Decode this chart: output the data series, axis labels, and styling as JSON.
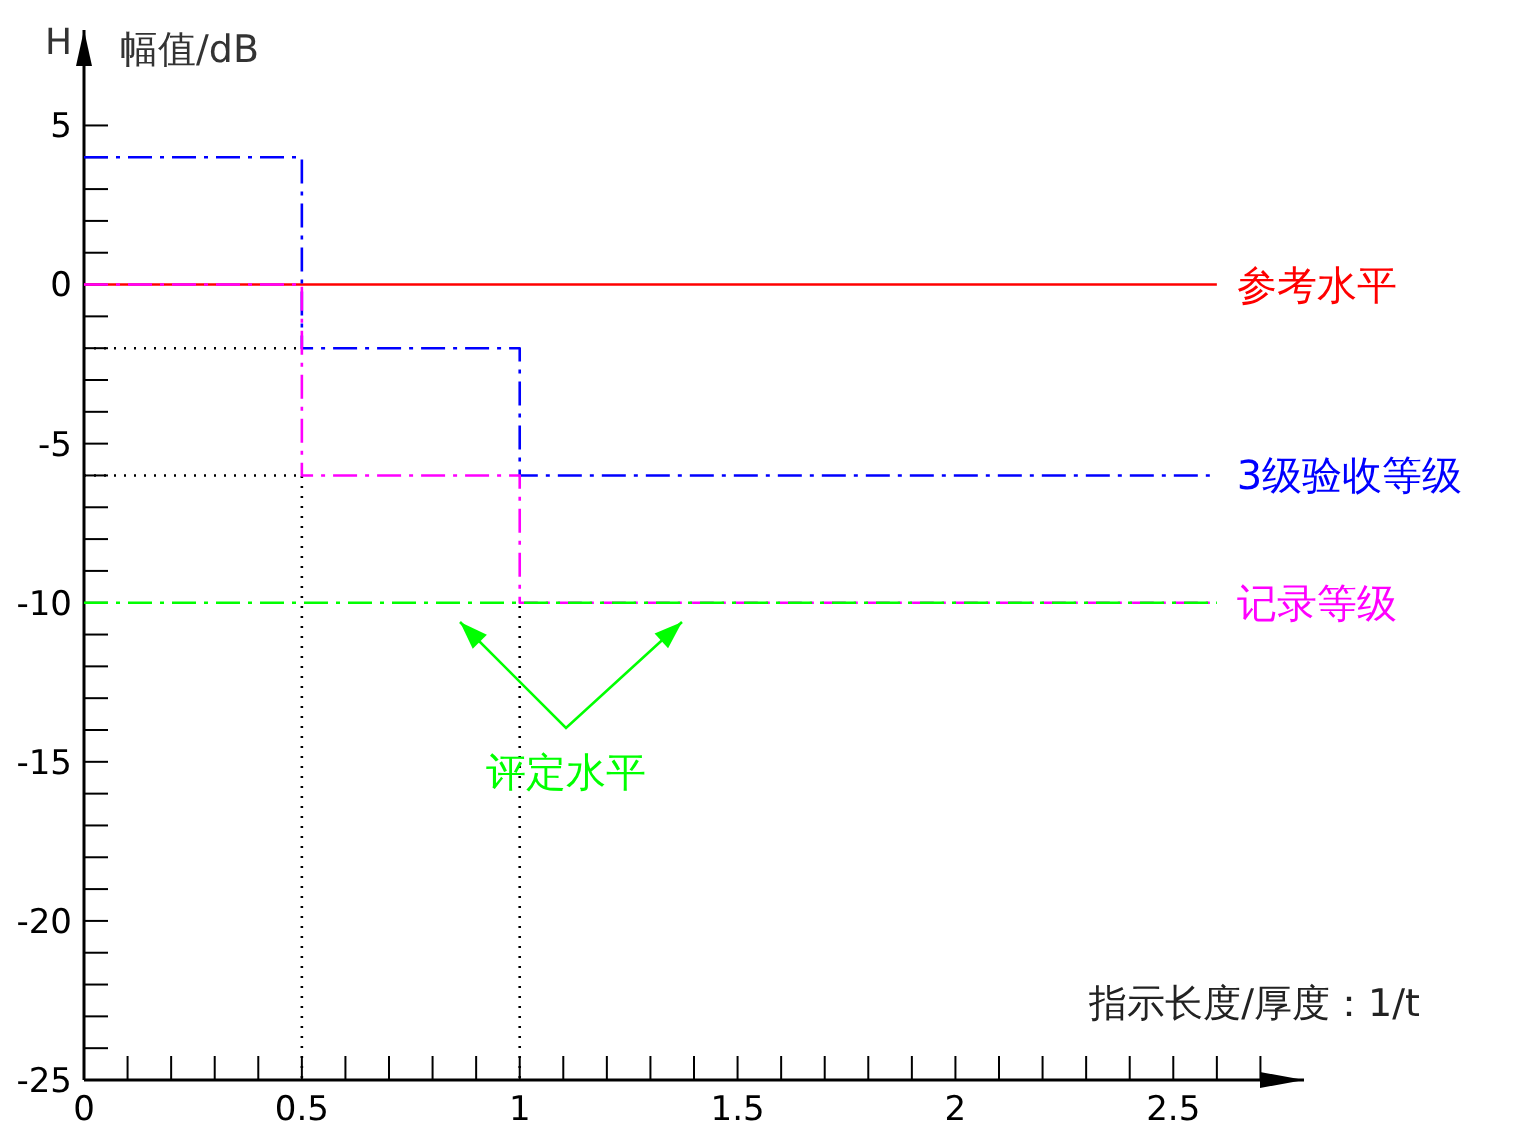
{
  "chart_data": {
    "type": "line",
    "xlabel": "指示长度/厚度：1/t",
    "ylabel": "幅值/dB",
    "xlim": [
      0,
      2.8
    ],
    "ylim": [
      -25,
      8
    ],
    "xticks": [
      0,
      {
        "value": 0.1,
        "label": null
      },
      {
        "value": 0.2,
        "label": null
      },
      {
        "value": 0.3,
        "label": null
      },
      {
        "value": 0.4,
        "label": null
      },
      0.5,
      {
        "value": 0.6,
        "label": null
      },
      {
        "value": 0.7,
        "label": null
      },
      {
        "value": 0.8,
        "label": null
      },
      {
        "value": 0.9,
        "label": null
      },
      1,
      {
        "value": 1.1,
        "label": null
      },
      {
        "value": 1.2,
        "label": null
      },
      {
        "value": 1.3,
        "label": null
      },
      {
        "value": 1.4,
        "label": null
      },
      1.5,
      {
        "value": 1.6,
        "label": null
      },
      {
        "value": 1.7,
        "label": null
      },
      {
        "value": 1.8,
        "label": null
      },
      {
        "value": 1.9,
        "label": null
      },
      2,
      {
        "value": 2.1,
        "label": null
      },
      {
        "value": 2.2,
        "label": null
      },
      {
        "value": 2.3,
        "label": null
      },
      {
        "value": 2.4,
        "label": null
      },
      2.5,
      {
        "value": 2.6,
        "label": null
      },
      {
        "value": 2.7,
        "label": null
      }
    ],
    "yticks": [
      -25,
      {
        "value": -24,
        "label": null
      },
      {
        "value": -23,
        "label": null
      },
      {
        "value": -22,
        "label": null
      },
      {
        "value": -21,
        "label": null
      },
      -20,
      {
        "value": -19,
        "label": null
      },
      {
        "value": -18,
        "label": null
      },
      {
        "value": -17,
        "label": null
      },
      {
        "value": -16,
        "label": null
      },
      -15,
      {
        "value": -14,
        "label": null
      },
      {
        "value": -13,
        "label": null
      },
      {
        "value": -12,
        "label": null
      },
      {
        "value": -11,
        "label": null
      },
      -10,
      {
        "value": -9,
        "label": null
      },
      {
        "value": -8,
        "label": null
      },
      {
        "value": -7,
        "label": null
      },
      {
        "value": -6,
        "label": null
      },
      -5,
      {
        "value": -4,
        "label": null
      },
      {
        "value": -3,
        "label": null
      },
      {
        "value": -2,
        "label": null
      },
      {
        "value": -1,
        "label": null
      },
      0,
      {
        "value": 1,
        "label": null
      },
      {
        "value": 2,
        "label": null
      },
      {
        "value": 3,
        "label": null
      },
      {
        "value": 4,
        "label": null
      },
      5
    ],
    "grid": false,
    "marker": "none",
    "series": [
      {
        "name": "参考水平",
        "color": "#ff0000",
        "line_style": "solid",
        "x": [
          0,
          2.6
        ],
        "values": [
          0,
          0
        ]
      },
      {
        "name": "3级验收等级",
        "color": "#0000ff",
        "line_style": "dashed",
        "x": [
          0,
          0.5,
          0.5,
          1,
          1,
          2.6
        ],
        "values": [
          4,
          4,
          -2,
          -2,
          -6,
          -6
        ]
      },
      {
        "name": "记录等级",
        "color": "#ff00ff",
        "line_style": "dashed",
        "x": [
          0,
          0.5,
          0.5,
          1,
          1,
          2.6
        ],
        "values": [
          0,
          0,
          -6,
          -6,
          -10,
          -10
        ]
      },
      {
        "color": "#00ff00",
        "line_style": "dashed",
        "x": [
          0,
          2.6
        ],
        "values": [
          -10,
          -10
        ]
      },
      {
        "color": "#000000",
        "line_style": "dotted",
        "x": [
          0,
          0.5
        ],
        "values": [
          -2,
          -2
        ]
      },
      {
        "color": "#000000",
        "line_style": "dotted",
        "x": [
          0,
          0.5
        ],
        "values": [
          -6,
          -6
        ]
      }
    ],
    "ref_lines": [
      {
        "axis": "x",
        "value": 0.5,
        "color": "#000000",
        "line_style": "dotted"
      },
      {
        "axis": "x",
        "value": 1,
        "color": "#000000",
        "line_style": "dotted"
      }
    ],
    "annotations": [
      "评定水平",
      "H"
    ]
  }
}
